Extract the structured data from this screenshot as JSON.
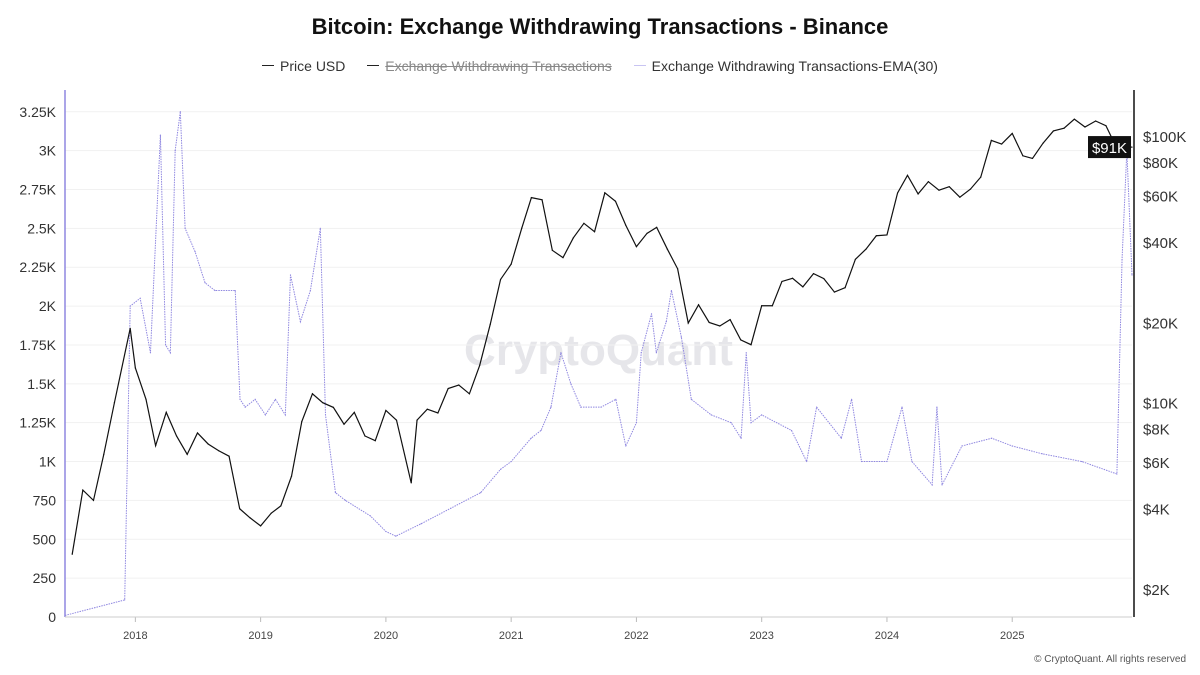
{
  "chart_data": {
    "type": "line",
    "title": "Bitcoin: Exchange Withdrawing Transactions - Binance",
    "legend": {
      "placement": "top-center",
      "items": [
        {
          "label": "Price USD",
          "color": "#111111",
          "hidden": false
        },
        {
          "label": "Exchange Withdrawing Transactions",
          "color": "#111111",
          "hidden": true
        },
        {
          "label": "Exchange Withdrawing Transactions-EMA(30)",
          "color": "#8f87e0",
          "hidden": false
        }
      ]
    },
    "x_axis": {
      "type": "date",
      "range": [
        "2017-06-10",
        "2025-12-16"
      ],
      "ticks": [
        "2018",
        "2019",
        "2020",
        "2021",
        "2022",
        "2023",
        "2024",
        "2025"
      ]
    },
    "y_left": {
      "range": [
        0,
        3390
      ],
      "ticks": [
        0,
        250,
        500,
        750,
        1000,
        1250,
        1500,
        1750,
        2000,
        2250,
        2500,
        2750,
        3000,
        3250
      ],
      "tick_labels": [
        "0",
        "250",
        "500",
        "750",
        "1K",
        "1.25K",
        "1.5K",
        "1.75K",
        "2K",
        "2.25K",
        "2.5K",
        "2.75K",
        "3K",
        "3.25K"
      ]
    },
    "y_right": {
      "scale": "log",
      "range": [
        1570,
        149000
      ],
      "ticks": [
        2000,
        4000,
        6000,
        8000,
        10000,
        20000,
        40000,
        60000,
        80000,
        100000
      ],
      "tick_labels": [
        "$2K",
        "$4K",
        "$6K",
        "$8K",
        "$10K",
        "$20K",
        "$40K",
        "$60K",
        "$80K",
        "$100K"
      ]
    },
    "current_price_label": "$91K",
    "grid": true,
    "series": [
      {
        "name": "Price USD",
        "axis": "right",
        "color": "#111111",
        "points": [
          [
            "2017-07-01",
            2700
          ],
          [
            "2017-08-01",
            4700
          ],
          [
            "2017-09-01",
            4300
          ],
          [
            "2017-10-01",
            6400
          ],
          [
            "2017-11-01",
            10000
          ],
          [
            "2017-12-17",
            19000
          ],
          [
            "2018-01-01",
            13500
          ],
          [
            "2018-02-01",
            10300
          ],
          [
            "2018-03-01",
            6900
          ],
          [
            "2018-04-01",
            9200
          ],
          [
            "2018-05-01",
            7500
          ],
          [
            "2018-06-01",
            6400
          ],
          [
            "2018-07-01",
            7700
          ],
          [
            "2018-08-01",
            7000
          ],
          [
            "2018-09-01",
            6600
          ],
          [
            "2018-10-01",
            6300
          ],
          [
            "2018-11-01",
            4000
          ],
          [
            "2018-12-01",
            3700
          ],
          [
            "2019-01-01",
            3450
          ],
          [
            "2019-02-01",
            3850
          ],
          [
            "2019-03-01",
            4100
          ],
          [
            "2019-04-01",
            5300
          ],
          [
            "2019-05-01",
            8500
          ],
          [
            "2019-06-01",
            10800
          ],
          [
            "2019-07-01",
            10000
          ],
          [
            "2019-08-01",
            9600
          ],
          [
            "2019-09-01",
            8300
          ],
          [
            "2019-10-01",
            9200
          ],
          [
            "2019-11-01",
            7500
          ],
          [
            "2019-12-01",
            7200
          ],
          [
            "2020-01-01",
            9350
          ],
          [
            "2020-02-01",
            8600
          ],
          [
            "2020-03-15",
            5000
          ],
          [
            "2020-04-01",
            8600
          ],
          [
            "2020-05-01",
            9450
          ],
          [
            "2020-06-01",
            9150
          ],
          [
            "2020-07-01",
            11300
          ],
          [
            "2020-08-01",
            11650
          ],
          [
            "2020-09-01",
            10800
          ],
          [
            "2020-10-01",
            13800
          ],
          [
            "2020-11-01",
            19700
          ],
          [
            "2020-12-01",
            29000
          ],
          [
            "2021-01-01",
            33100
          ],
          [
            "2021-02-01",
            45200
          ],
          [
            "2021-03-01",
            58800
          ],
          [
            "2021-04-01",
            57700
          ],
          [
            "2021-05-01",
            37300
          ],
          [
            "2021-06-01",
            35000
          ],
          [
            "2021-07-01",
            41500
          ],
          [
            "2021-08-01",
            47100
          ],
          [
            "2021-09-01",
            43800
          ],
          [
            "2021-10-01",
            61300
          ],
          [
            "2021-11-01",
            57000
          ],
          [
            "2021-12-01",
            46300
          ],
          [
            "2022-01-01",
            38500
          ],
          [
            "2022-02-01",
            43200
          ],
          [
            "2022-03-01",
            45500
          ],
          [
            "2022-04-01",
            37700
          ],
          [
            "2022-05-01",
            31800
          ],
          [
            "2022-06-01",
            19900
          ],
          [
            "2022-07-01",
            23300
          ],
          [
            "2022-08-01",
            20000
          ],
          [
            "2022-09-01",
            19400
          ],
          [
            "2022-10-01",
            20500
          ],
          [
            "2022-11-01",
            17200
          ],
          [
            "2022-12-01",
            16500
          ],
          [
            "2023-01-01",
            23100
          ],
          [
            "2023-02-01",
            23100
          ],
          [
            "2023-03-01",
            28500
          ],
          [
            "2023-04-01",
            29300
          ],
          [
            "2023-05-01",
            27200
          ],
          [
            "2023-06-01",
            30500
          ],
          [
            "2023-07-01",
            29200
          ],
          [
            "2023-08-01",
            26000
          ],
          [
            "2023-09-01",
            27000
          ],
          [
            "2023-10-01",
            34500
          ],
          [
            "2023-11-01",
            37700
          ],
          [
            "2023-12-01",
            42300
          ],
          [
            "2024-01-01",
            42600
          ],
          [
            "2024-02-01",
            61200
          ],
          [
            "2024-03-01",
            71300
          ],
          [
            "2024-04-01",
            60700
          ],
          [
            "2024-05-01",
            67500
          ],
          [
            "2024-06-01",
            62700
          ],
          [
            "2024-07-01",
            64600
          ],
          [
            "2024-08-01",
            59000
          ],
          [
            "2024-09-01",
            63300
          ],
          [
            "2024-10-01",
            70200
          ],
          [
            "2024-11-01",
            96400
          ],
          [
            "2024-12-01",
            93400
          ],
          [
            "2025-01-01",
            102400
          ],
          [
            "2025-02-01",
            84400
          ],
          [
            "2025-03-01",
            82500
          ],
          [
            "2025-04-01",
            94200
          ],
          [
            "2025-05-01",
            104600
          ],
          [
            "2025-06-01",
            107100
          ],
          [
            "2025-07-01",
            115800
          ],
          [
            "2025-08-01",
            108200
          ],
          [
            "2025-09-01",
            114000
          ],
          [
            "2025-10-01",
            109500
          ],
          [
            "2025-11-01",
            90500
          ],
          [
            "2025-12-16",
            91000
          ]
        ]
      },
      {
        "name": "Exchange Withdrawing Transactions-EMA(30)",
        "axis": "left",
        "color": "#8f87e0",
        "points": [
          [
            "2017-06-10",
            10
          ],
          [
            "2017-09-05",
            60
          ],
          [
            "2017-12-01",
            110
          ],
          [
            "2017-12-17",
            2000
          ],
          [
            "2018-01-15",
            2050
          ],
          [
            "2018-02-14",
            1700
          ],
          [
            "2018-03-15",
            3100
          ],
          [
            "2018-03-30",
            1750
          ],
          [
            "2018-04-13",
            1700
          ],
          [
            "2018-04-27",
            3000
          ],
          [
            "2018-05-12",
            3250
          ],
          [
            "2018-05-26",
            2500
          ],
          [
            "2018-06-24",
            2350
          ],
          [
            "2018-07-23",
            2150
          ],
          [
            "2018-08-21",
            2100
          ],
          [
            "2018-10-19",
            2100
          ],
          [
            "2018-11-02",
            1400
          ],
          [
            "2018-11-17",
            1350
          ],
          [
            "2018-12-16",
            1400
          ],
          [
            "2019-01-15",
            1300
          ],
          [
            "2019-02-13",
            1400
          ],
          [
            "2019-03-14",
            1300
          ],
          [
            "2019-03-29",
            2200
          ],
          [
            "2019-04-27",
            1900
          ],
          [
            "2019-05-26",
            2100
          ],
          [
            "2019-06-24",
            2500
          ],
          [
            "2019-07-09",
            1300
          ],
          [
            "2019-08-07",
            800
          ],
          [
            "2019-09-05",
            750
          ],
          [
            "2019-11-17",
            650
          ],
          [
            "2020-01-01",
            550
          ],
          [
            "2020-01-30",
            520
          ],
          [
            "2020-04-13",
            600
          ],
          [
            "2020-07-09",
            700
          ],
          [
            "2020-10-04",
            800
          ],
          [
            "2020-12-01",
            950
          ],
          [
            "2021-01-01",
            1000
          ],
          [
            "2021-02-28",
            1150
          ],
          [
            "2021-03-29",
            1200
          ],
          [
            "2021-04-27",
            1350
          ],
          [
            "2021-05-26",
            1700
          ],
          [
            "2021-06-24",
            1500
          ],
          [
            "2021-07-23",
            1350
          ],
          [
            "2021-09-20",
            1350
          ],
          [
            "2021-11-02",
            1400
          ],
          [
            "2021-12-01",
            1100
          ],
          [
            "2022-01-01",
            1250
          ],
          [
            "2022-01-15",
            1700
          ],
          [
            "2022-02-14",
            1950
          ],
          [
            "2022-02-28",
            1700
          ],
          [
            "2022-03-29",
            1900
          ],
          [
            "2022-04-13",
            2100
          ],
          [
            "2022-05-12",
            1800
          ],
          [
            "2022-06-10",
            1400
          ],
          [
            "2022-08-07",
            1300
          ],
          [
            "2022-10-04",
            1250
          ],
          [
            "2022-11-02",
            1150
          ],
          [
            "2022-11-17",
            1700
          ],
          [
            "2022-12-01",
            1250
          ],
          [
            "2023-01-01",
            1300
          ],
          [
            "2023-03-29",
            1200
          ],
          [
            "2023-05-12",
            1000
          ],
          [
            "2023-06-10",
            1350
          ],
          [
            "2023-08-21",
            1150
          ],
          [
            "2023-09-20",
            1400
          ],
          [
            "2023-10-19",
            1000
          ],
          [
            "2024-01-01",
            1000
          ],
          [
            "2024-02-14",
            1350
          ],
          [
            "2024-03-14",
            1000
          ],
          [
            "2024-05-12",
            850
          ],
          [
            "2024-05-26",
            1350
          ],
          [
            "2024-06-10",
            850
          ],
          [
            "2024-08-07",
            1100
          ],
          [
            "2024-11-02",
            1150
          ],
          [
            "2025-01-01",
            1100
          ],
          [
            "2025-03-29",
            1050
          ],
          [
            "2025-07-23",
            1000
          ],
          [
            "2025-11-02",
            920
          ],
          [
            "2025-11-17",
            2300
          ],
          [
            "2025-12-01",
            3000
          ],
          [
            "2025-12-16",
            2200
          ]
        ]
      }
    ]
  },
  "watermark": "CryptoQuant",
  "copyright": "© CryptoQuant. All rights reserved"
}
